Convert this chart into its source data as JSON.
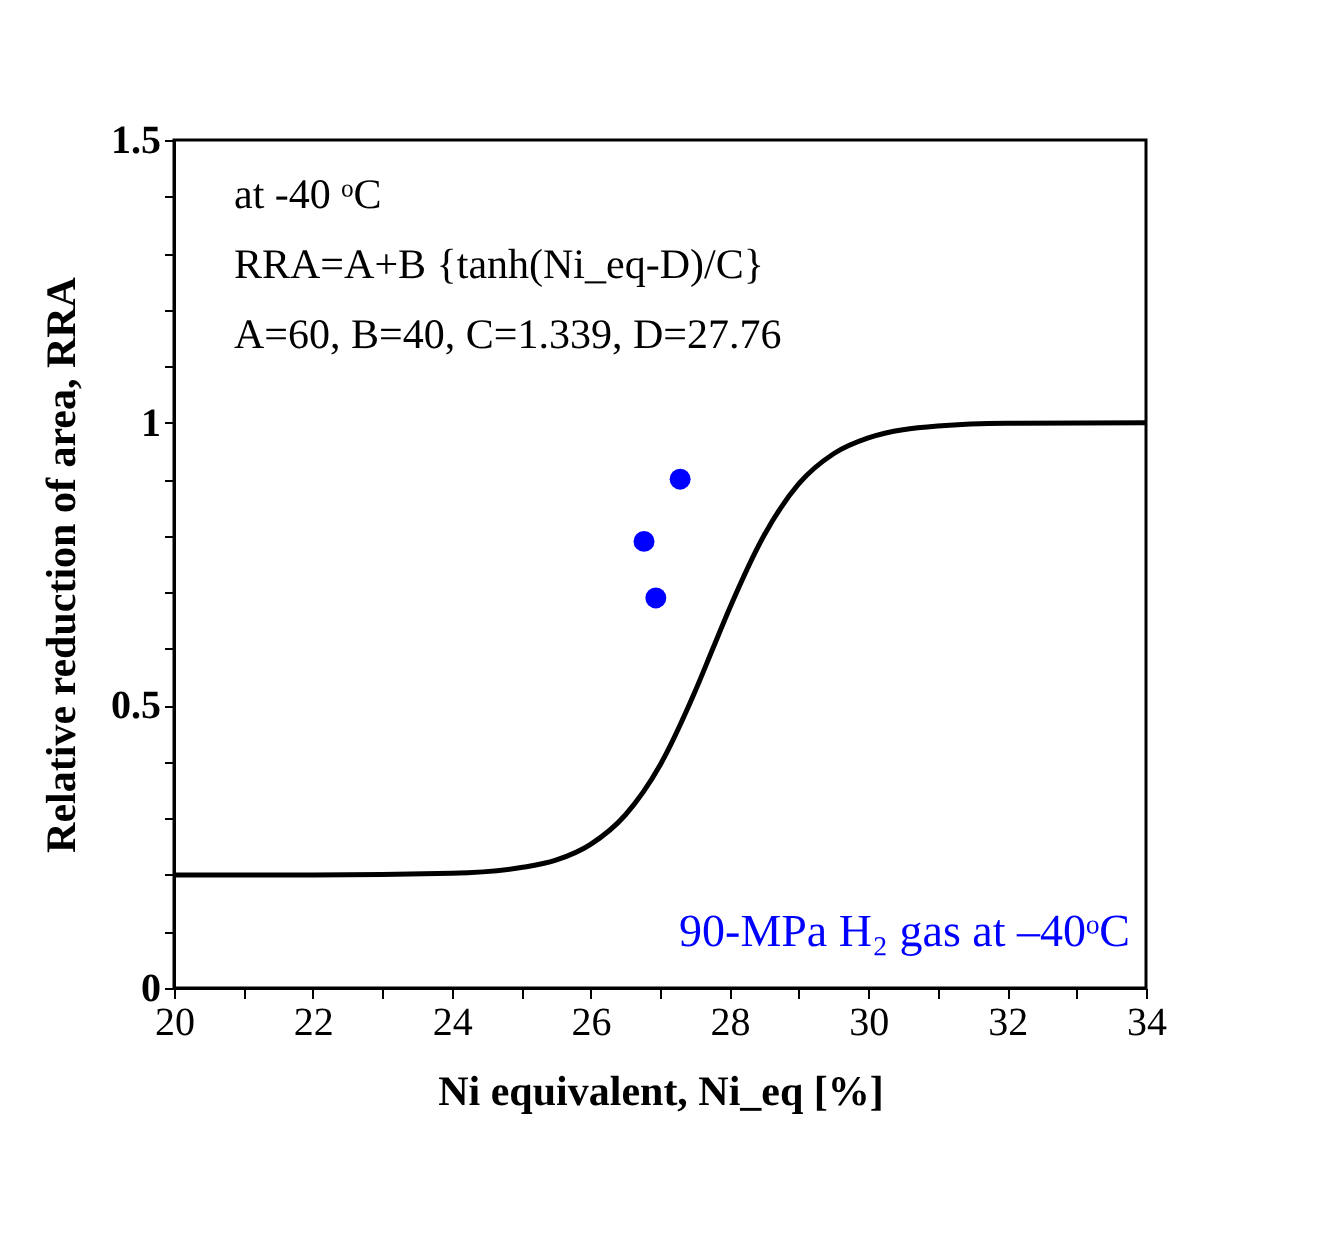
{
  "chart_data": {
    "type": "line",
    "xlabel": "Ni equivalent, Ni_eq [%]",
    "ylabel": "Relative reduction of area, RRA",
    "annotations": [
      "at -40 ᵒC",
      "RRA=A+B {tanh(Ni_eq-D)/C}",
      "A=60, B=40, C=1.339, D=27.76"
    ],
    "series": [
      {
        "color": "#000000",
        "line_style": "solid",
        "x": [
          20,
          22,
          24,
          25,
          25.5,
          26,
          26.5,
          27,
          27.5,
          27.76,
          28,
          28.5,
          29,
          29.5,
          30,
          31,
          32,
          34
        ],
        "values": [
          0.2,
          0.2,
          0.203,
          0.213,
          0.226,
          0.254,
          0.306,
          0.394,
          0.523,
          0.6,
          0.671,
          0.801,
          0.892,
          0.945,
          0.973,
          0.994,
          0.999,
          1.0
        ]
      },
      {
        "type": "scatter",
        "name": "90-MPa H₂ gas at –40ᵒC",
        "color": "#0000ff",
        "marker": "circle",
        "x": [
          27.29,
          26.77,
          26.94
        ],
        "values": [
          0.9,
          0.79,
          0.69
        ]
      }
    ],
    "xlim": [
      20,
      34
    ],
    "ylim": [
      0,
      1.5
    ],
    "xticks": [
      20,
      {
        "value": 21,
        "label": null
      },
      22,
      {
        "value": 23,
        "label": null
      },
      24,
      {
        "value": 25,
        "label": null
      },
      26,
      {
        "value": 27,
        "label": null
      },
      28,
      {
        "value": 29,
        "label": null
      },
      30,
      {
        "value": 31,
        "label": null
      },
      32,
      {
        "value": 33,
        "label": null
      },
      34
    ],
    "yticks": [
      0,
      {
        "value": 0.1,
        "label": null
      },
      {
        "value": 0.2,
        "label": null
      },
      {
        "value": 0.3,
        "label": null
      },
      {
        "value": 0.4,
        "label": null
      },
      0.5,
      {
        "value": 0.6,
        "label": null
      },
      {
        "value": 0.7,
        "label": null
      },
      {
        "value": 0.8,
        "label": null
      },
      {
        "value": 0.9,
        "label": null
      },
      1,
      {
        "value": 1.1,
        "label": null
      },
      {
        "value": 1.2,
        "label": null
      },
      {
        "value": 1.3,
        "label": null
      },
      {
        "value": 1.4,
        "label": null
      },
      1.5
    ],
    "grid": false,
    "legend": "bottom right"
  }
}
